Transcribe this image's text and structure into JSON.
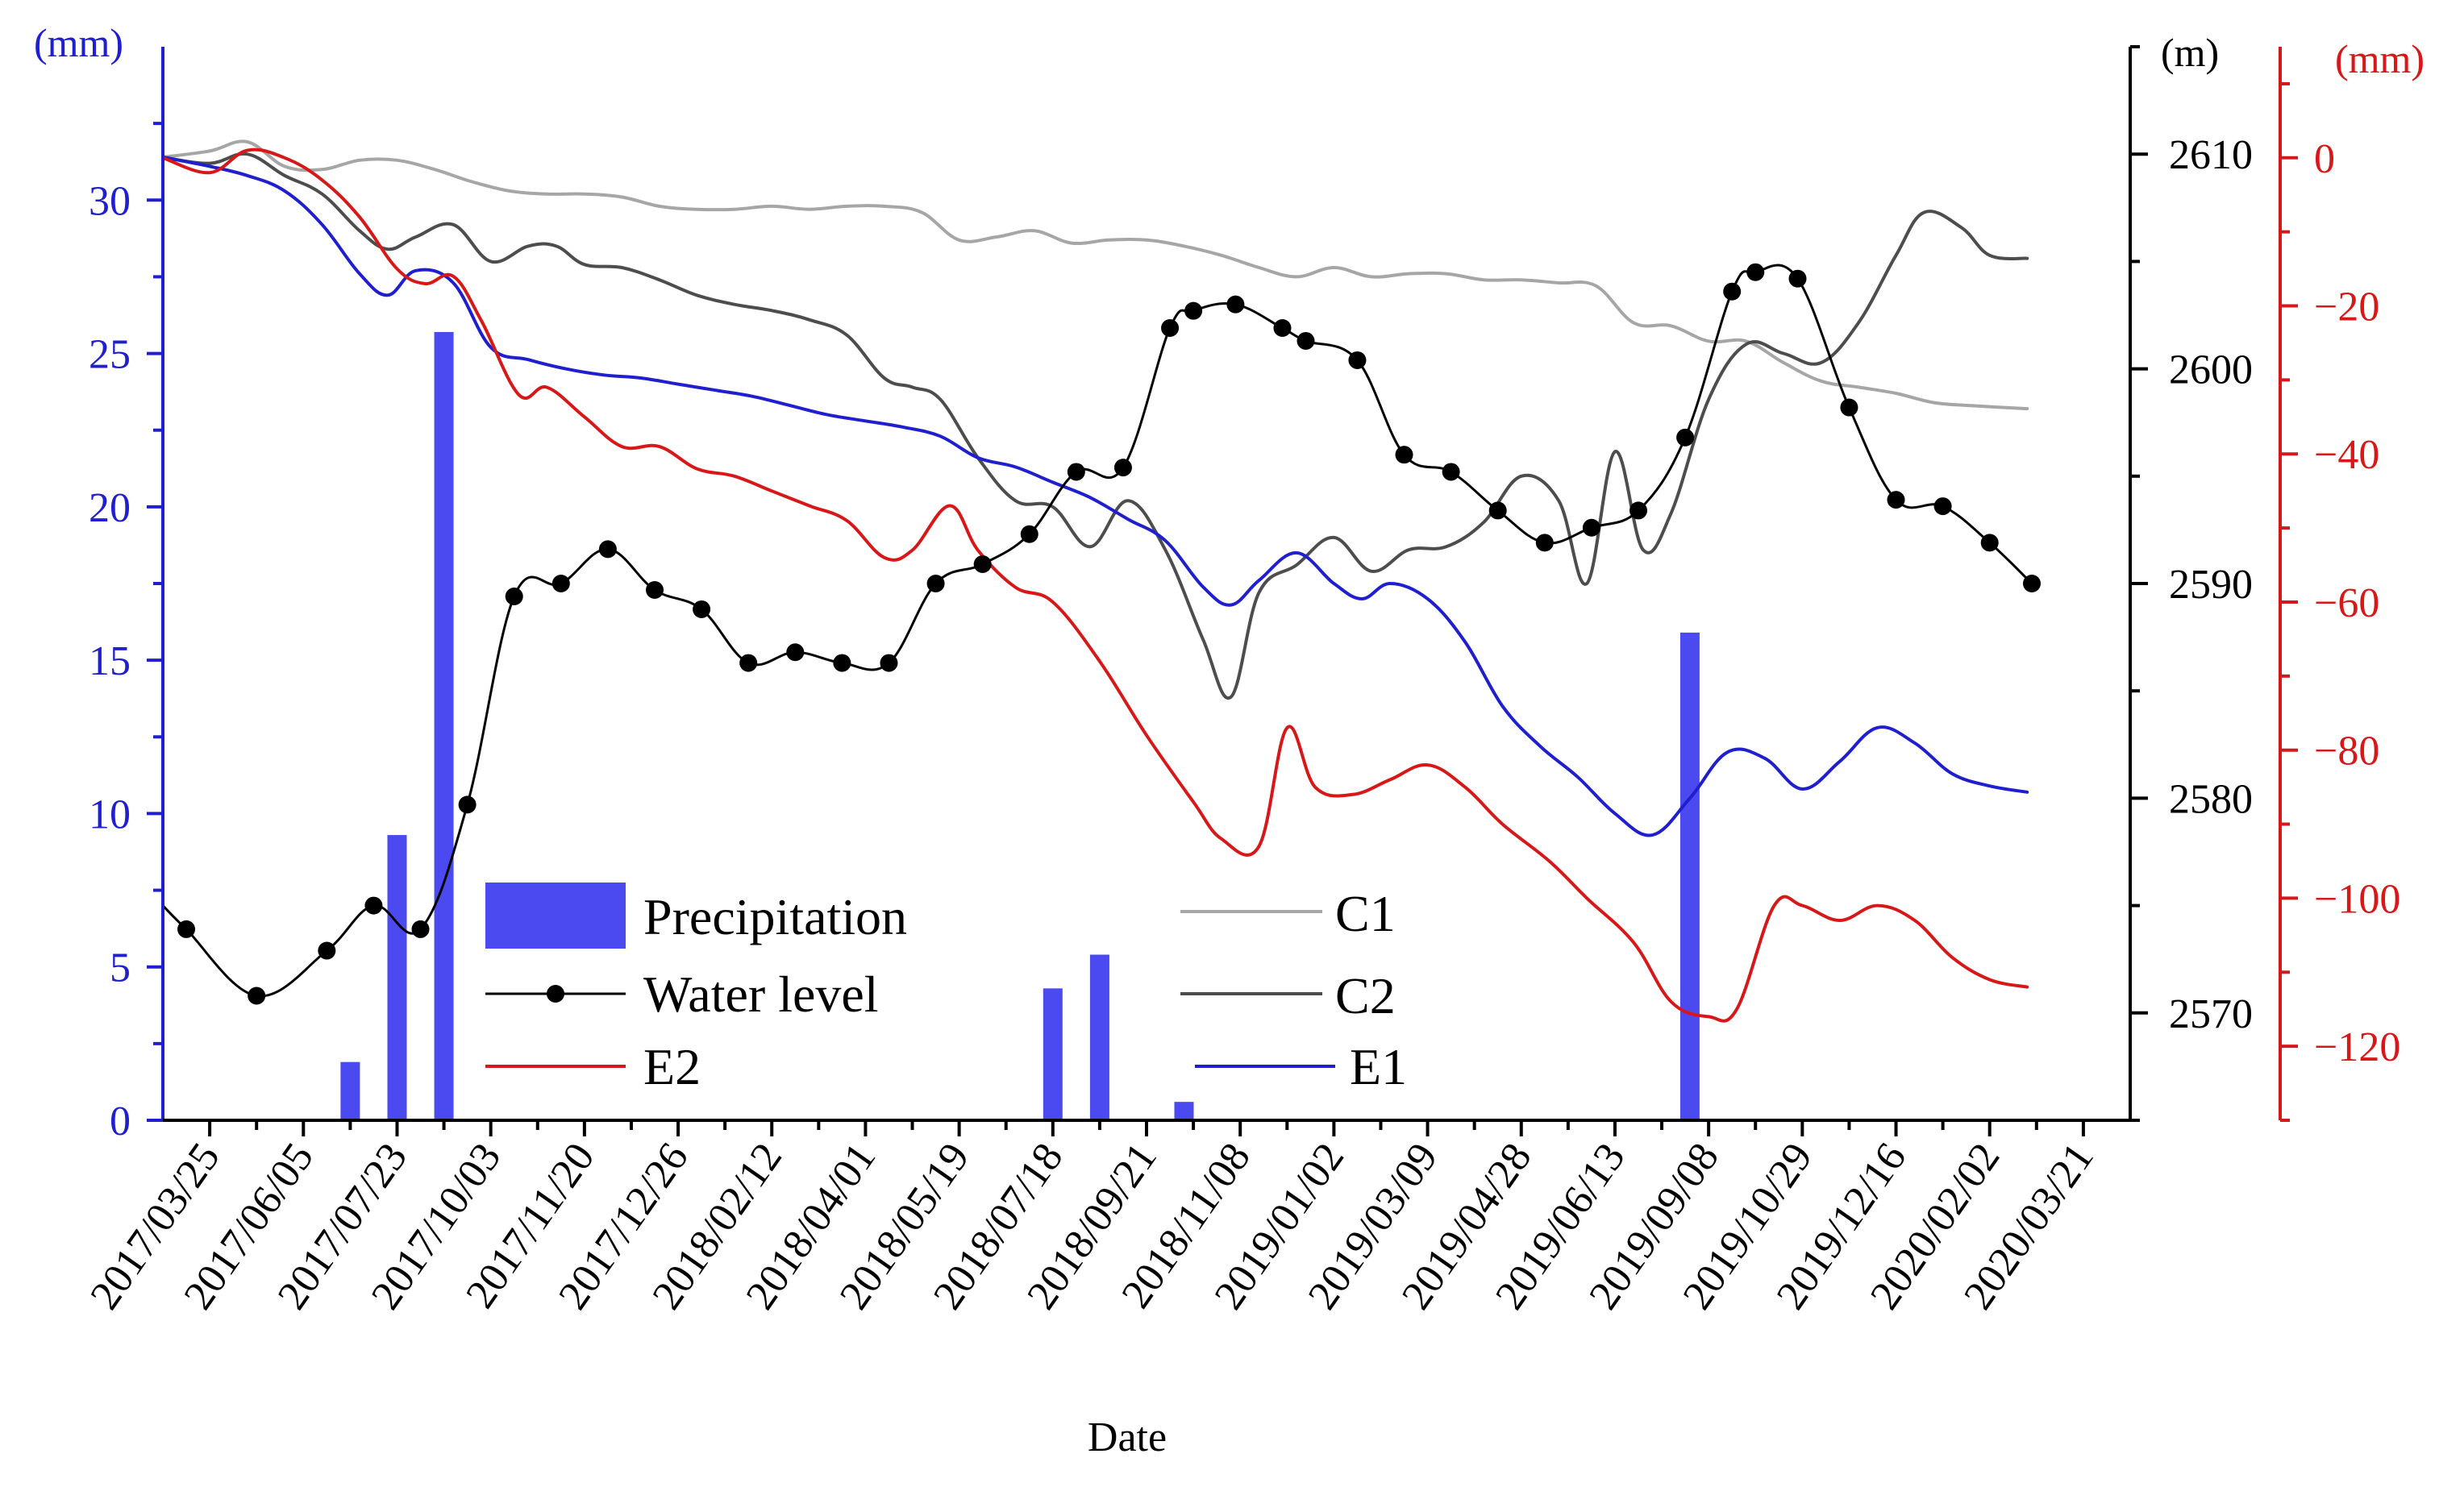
{
  "chart_data": {
    "type": "combo",
    "xlabel": "Date",
    "x_ticks": [
      "2017/03/25",
      "2017/06/05",
      "2017/07/23",
      "2017/10/03",
      "2017/11/20",
      "2017/12/26",
      "2018/02/12",
      "2018/04/01",
      "2018/05/19",
      "2018/07/18",
      "2018/09/21",
      "2018/11/08",
      "2019/01/02",
      "2019/03/09",
      "2019/04/28",
      "2019/06/13",
      "2019/09/08",
      "2019/10/29",
      "2019/12/16",
      "2020/02/02",
      "2020/03/21"
    ],
    "x_range": [
      -0.5,
      20.5
    ],
    "axes": {
      "left": {
        "label": "(mm)",
        "range": [
          0,
          35
        ],
        "ticks": [
          0,
          5,
          10,
          15,
          20,
          25,
          30
        ],
        "color": "#1f1fd0"
      },
      "right1": {
        "label": "(m)",
        "range": [
          2565,
          2615
        ],
        "ticks": [
          2570,
          2580,
          2590,
          2600,
          2610
        ],
        "color": "#000000"
      },
      "right2": {
        "label": "(mm)",
        "range": [
          -130,
          15
        ],
        "ticks": [
          -120,
          -100,
          -80,
          -60,
          -40,
          -20,
          0
        ],
        "tick_labels": [
          "−120",
          "−100",
          "−80",
          "−60",
          "−40",
          "−20",
          "0"
        ],
        "color": "#d81818"
      }
    },
    "legend": {
      "precipitation": "Precipitation",
      "water_level": "Water level",
      "e2": "E2",
      "c1": "C1",
      "c2": "C2",
      "e1": "E1"
    },
    "series": [
      {
        "name": "Precipitation",
        "kind": "bar",
        "axis": "left",
        "color": "#4a4af0",
        "points": [
          [
            1.5,
            1.9
          ],
          [
            2.0,
            9.3
          ],
          [
            2.5,
            25.7
          ],
          [
            9.0,
            4.3
          ],
          [
            9.5,
            5.4
          ],
          [
            10.4,
            0.6
          ],
          [
            15.8,
            15.9
          ]
        ]
      },
      {
        "name": "Water level",
        "kind": "line-marker",
        "axis": "right1",
        "color": "#000000",
        "points": [
          [
            -0.5,
            2575.0
          ],
          [
            -0.25,
            2573.9
          ],
          [
            0.5,
            2570.8
          ],
          [
            1.25,
            2572.9
          ],
          [
            1.75,
            2575.0
          ],
          [
            2.25,
            2573.9
          ],
          [
            2.75,
            2579.7
          ],
          [
            3.25,
            2589.4
          ],
          [
            3.75,
            2590.0
          ],
          [
            4.25,
            2591.6
          ],
          [
            4.75,
            2589.7
          ],
          [
            5.25,
            2588.8
          ],
          [
            5.75,
            2586.3
          ],
          [
            6.25,
            2586.8
          ],
          [
            6.75,
            2586.3
          ],
          [
            7.25,
            2586.3
          ],
          [
            7.75,
            2590.0
          ],
          [
            8.25,
            2590.9
          ],
          [
            8.75,
            2592.3
          ],
          [
            9.25,
            2595.2
          ],
          [
            9.75,
            2595.4
          ],
          [
            10.25,
            2601.9
          ],
          [
            10.5,
            2602.7
          ],
          [
            10.95,
            2603.0
          ],
          [
            11.45,
            2601.9
          ],
          [
            11.7,
            2601.3
          ],
          [
            12.25,
            2600.4
          ],
          [
            12.75,
            2596.0
          ],
          [
            13.25,
            2595.2
          ],
          [
            13.75,
            2593.4
          ],
          [
            14.25,
            2591.9
          ],
          [
            14.75,
            2592.6
          ],
          [
            15.25,
            2593.4
          ],
          [
            15.75,
            2596.8
          ],
          [
            16.25,
            2603.6
          ],
          [
            16.5,
            2604.5
          ],
          [
            16.95,
            2604.2
          ],
          [
            17.5,
            2598.2
          ],
          [
            18.0,
            2593.9
          ],
          [
            18.5,
            2593.6
          ],
          [
            19.0,
            2591.9
          ],
          [
            19.45,
            2590.0
          ]
        ]
      },
      {
        "name": "E2",
        "kind": "line",
        "axis": "right2",
        "color": "#d81818",
        "points": [
          [
            -0.5,
            0.0
          ],
          [
            0.0,
            -2.0
          ],
          [
            0.4,
            1.0
          ],
          [
            0.8,
            0.0
          ],
          [
            1.2,
            -3.0
          ],
          [
            1.6,
            -8.0
          ],
          [
            2.0,
            -15.0
          ],
          [
            2.3,
            -17.0
          ],
          [
            2.6,
            -16.0
          ],
          [
            2.9,
            -22.0
          ],
          [
            3.3,
            -32.0
          ],
          [
            3.6,
            -31.0
          ],
          [
            4.0,
            -35.0
          ],
          [
            4.4,
            -39.0
          ],
          [
            4.8,
            -39.0
          ],
          [
            5.2,
            -42.0
          ],
          [
            5.6,
            -43.0
          ],
          [
            6.0,
            -45.0
          ],
          [
            6.4,
            -47.0
          ],
          [
            6.8,
            -49.0
          ],
          [
            7.2,
            -54.0
          ],
          [
            7.5,
            -53.0
          ],
          [
            7.9,
            -47.0
          ],
          [
            8.2,
            -53.0
          ],
          [
            8.6,
            -58.0
          ],
          [
            9.0,
            -60.0
          ],
          [
            9.5,
            -68.0
          ],
          [
            10.0,
            -78.0
          ],
          [
            10.5,
            -87.0
          ],
          [
            10.8,
            -92.0
          ],
          [
            11.2,
            -93.0
          ],
          [
            11.5,
            -77.0
          ],
          [
            11.8,
            -85.0
          ],
          [
            12.2,
            -86.0
          ],
          [
            12.6,
            -84.0
          ],
          [
            13.0,
            -82.0
          ],
          [
            13.4,
            -85.0
          ],
          [
            13.8,
            -90.0
          ],
          [
            14.3,
            -95.0
          ],
          [
            14.7,
            -100.0
          ],
          [
            15.2,
            -106.0
          ],
          [
            15.6,
            -114.0
          ],
          [
            16.0,
            -116.0
          ],
          [
            16.3,
            -115.0
          ],
          [
            16.7,
            -101.0
          ],
          [
            17.0,
            -101.0
          ],
          [
            17.4,
            -103.0
          ],
          [
            17.8,
            -101.0
          ],
          [
            18.2,
            -103.0
          ],
          [
            18.6,
            -108.0
          ],
          [
            19.0,
            -111.0
          ],
          [
            19.4,
            -112.0
          ]
        ]
      },
      {
        "name": "E1",
        "kind": "line",
        "axis": "left",
        "color": "#1f1fd0",
        "points": [
          [
            -0.5,
            31.4
          ],
          [
            0.0,
            31.1
          ],
          [
            0.4,
            30.8
          ],
          [
            0.8,
            30.3
          ],
          [
            1.2,
            29.2
          ],
          [
            1.6,
            27.6
          ],
          [
            1.9,
            26.9
          ],
          [
            2.2,
            27.7
          ],
          [
            2.6,
            27.3
          ],
          [
            3.0,
            25.2
          ],
          [
            3.4,
            24.8
          ],
          [
            3.8,
            24.5
          ],
          [
            4.2,
            24.3
          ],
          [
            4.6,
            24.2
          ],
          [
            5.0,
            24.0
          ],
          [
            5.4,
            23.8
          ],
          [
            5.8,
            23.6
          ],
          [
            6.2,
            23.3
          ],
          [
            6.6,
            23.0
          ],
          [
            7.0,
            22.8
          ],
          [
            7.4,
            22.6
          ],
          [
            7.8,
            22.3
          ],
          [
            8.2,
            21.6
          ],
          [
            8.6,
            21.3
          ],
          [
            9.0,
            20.8
          ],
          [
            9.4,
            20.3
          ],
          [
            9.8,
            19.6
          ],
          [
            10.2,
            18.9
          ],
          [
            10.6,
            17.4
          ],
          [
            10.9,
            16.8
          ],
          [
            11.2,
            17.6
          ],
          [
            11.6,
            18.5
          ],
          [
            12.0,
            17.5
          ],
          [
            12.3,
            17.0
          ],
          [
            12.6,
            17.5
          ],
          [
            13.0,
            17.0
          ],
          [
            13.4,
            15.6
          ],
          [
            13.8,
            13.5
          ],
          [
            14.2,
            12.2
          ],
          [
            14.6,
            11.2
          ],
          [
            15.0,
            10.0
          ],
          [
            15.4,
            9.3
          ],
          [
            15.8,
            10.5
          ],
          [
            16.2,
            12.0
          ],
          [
            16.6,
            11.8
          ],
          [
            17.0,
            10.8
          ],
          [
            17.4,
            11.7
          ],
          [
            17.8,
            12.8
          ],
          [
            18.2,
            12.3
          ],
          [
            18.6,
            11.3
          ],
          [
            19.0,
            10.9
          ],
          [
            19.4,
            10.7
          ]
        ]
      },
      {
        "name": "C1",
        "kind": "line",
        "axis": "left",
        "color": "#a6a6a6",
        "points": [
          [
            -0.5,
            31.4
          ],
          [
            0.0,
            31.6
          ],
          [
            0.4,
            31.9
          ],
          [
            0.8,
            31.1
          ],
          [
            1.2,
            31.0
          ],
          [
            1.6,
            31.3
          ],
          [
            2.0,
            31.3
          ],
          [
            2.4,
            31.0
          ],
          [
            2.8,
            30.6
          ],
          [
            3.2,
            30.3
          ],
          [
            3.6,
            30.2
          ],
          [
            4.0,
            30.2
          ],
          [
            4.4,
            30.1
          ],
          [
            4.8,
            29.8
          ],
          [
            5.2,
            29.7
          ],
          [
            5.6,
            29.7
          ],
          [
            6.0,
            29.8
          ],
          [
            6.4,
            29.7
          ],
          [
            6.8,
            29.8
          ],
          [
            7.2,
            29.8
          ],
          [
            7.6,
            29.6
          ],
          [
            8.0,
            28.7
          ],
          [
            8.4,
            28.8
          ],
          [
            8.8,
            29.0
          ],
          [
            9.2,
            28.6
          ],
          [
            9.6,
            28.7
          ],
          [
            10.0,
            28.7
          ],
          [
            10.4,
            28.5
          ],
          [
            10.8,
            28.2
          ],
          [
            11.2,
            27.8
          ],
          [
            11.6,
            27.5
          ],
          [
            12.0,
            27.8
          ],
          [
            12.4,
            27.5
          ],
          [
            12.8,
            27.6
          ],
          [
            13.2,
            27.6
          ],
          [
            13.6,
            27.4
          ],
          [
            14.0,
            27.4
          ],
          [
            14.4,
            27.3
          ],
          [
            14.8,
            27.2
          ],
          [
            15.2,
            26.0
          ],
          [
            15.6,
            25.9
          ],
          [
            16.0,
            25.4
          ],
          [
            16.4,
            25.4
          ],
          [
            16.8,
            24.7
          ],
          [
            17.2,
            24.1
          ],
          [
            17.6,
            23.9
          ],
          [
            18.0,
            23.7
          ],
          [
            18.4,
            23.4
          ],
          [
            18.8,
            23.3
          ],
          [
            19.4,
            23.2
          ]
        ]
      },
      {
        "name": "C2",
        "kind": "line",
        "axis": "left",
        "color": "#4d4d4d",
        "points": [
          [
            -0.5,
            31.4
          ],
          [
            0.0,
            31.2
          ],
          [
            0.4,
            31.5
          ],
          [
            0.8,
            30.8
          ],
          [
            1.2,
            30.2
          ],
          [
            1.6,
            29.0
          ],
          [
            1.9,
            28.4
          ],
          [
            2.2,
            28.8
          ],
          [
            2.6,
            29.2
          ],
          [
            3.0,
            28.0
          ],
          [
            3.4,
            28.5
          ],
          [
            3.7,
            28.5
          ],
          [
            4.0,
            27.9
          ],
          [
            4.4,
            27.8
          ],
          [
            4.8,
            27.4
          ],
          [
            5.2,
            26.9
          ],
          [
            5.6,
            26.6
          ],
          [
            6.0,
            26.4
          ],
          [
            6.4,
            26.1
          ],
          [
            6.8,
            25.6
          ],
          [
            7.2,
            24.2
          ],
          [
            7.5,
            23.9
          ],
          [
            7.8,
            23.5
          ],
          [
            8.2,
            21.6
          ],
          [
            8.6,
            20.2
          ],
          [
            9.0,
            20.0
          ],
          [
            9.4,
            18.7
          ],
          [
            9.8,
            20.2
          ],
          [
            10.2,
            18.6
          ],
          [
            10.6,
            15.7
          ],
          [
            10.9,
            13.8
          ],
          [
            11.2,
            17.2
          ],
          [
            11.6,
            18.1
          ],
          [
            12.0,
            19.0
          ],
          [
            12.4,
            17.9
          ],
          [
            12.8,
            18.6
          ],
          [
            13.2,
            18.7
          ],
          [
            13.6,
            19.5
          ],
          [
            14.0,
            21.0
          ],
          [
            14.4,
            20.2
          ],
          [
            14.7,
            17.5
          ],
          [
            15.0,
            21.8
          ],
          [
            15.3,
            18.6
          ],
          [
            15.6,
            19.8
          ],
          [
            16.0,
            23.5
          ],
          [
            16.4,
            25.3
          ],
          [
            16.8,
            25.0
          ],
          [
            17.2,
            24.7
          ],
          [
            17.6,
            26.0
          ],
          [
            18.0,
            28.2
          ],
          [
            18.3,
            29.6
          ],
          [
            18.7,
            29.1
          ],
          [
            19.0,
            28.2
          ],
          [
            19.4,
            28.1
          ]
        ]
      }
    ]
  }
}
